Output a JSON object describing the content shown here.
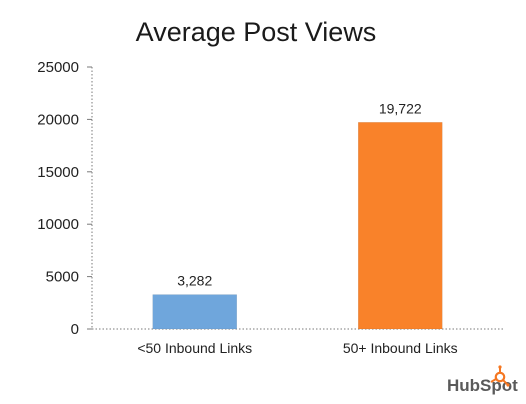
{
  "chart_data": {
    "type": "bar",
    "title": "Average Post Views",
    "xlabel": "",
    "ylabel": "",
    "categories": [
      "<50 Inbound Links",
      "50+ Inbound Links"
    ],
    "values": [
      3282,
      19722
    ],
    "data_labels": [
      "3,282",
      "19,722"
    ],
    "bar_colors": [
      "#6fa6dc",
      "#f9822a"
    ],
    "ylim": [
      0,
      25000
    ],
    "y_ticks": [
      "0",
      "5000",
      "10000",
      "15000",
      "20000",
      "25000"
    ],
    "grid": false,
    "legend": "none"
  },
  "branding": {
    "logo_text": "HubSpot",
    "logo_icon": "hubspot-sprocket-icon",
    "logo_color": "#f57722"
  }
}
